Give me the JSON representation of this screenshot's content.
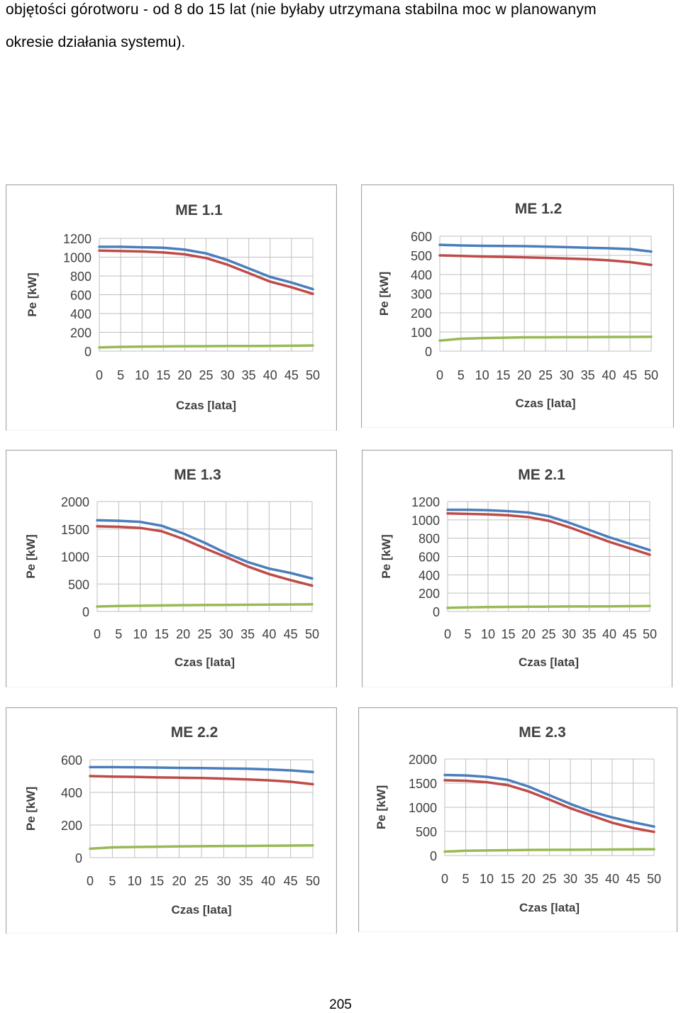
{
  "text": {
    "line1": "objętości górotworu - od 8 do 15 lat (nie byłaby utrzymana stabilna moc w planowanym",
    "line2": "okresie działania systemu)."
  },
  "page_number": "205",
  "colors": {
    "series1": "#4a7ebb",
    "series2": "#be4b48",
    "series3": "#98b954",
    "grid": "#bfbfbf",
    "border": "#a6a6a6"
  },
  "chart_data": [
    {
      "id": "me11",
      "type": "line",
      "title": "ME 1.1",
      "xlabel": "Czas [lata]",
      "ylabel": "Pe [kW]",
      "xlim": [
        0,
        50
      ],
      "ylim": [
        0,
        1200
      ],
      "xticks": [
        "0",
        "5",
        "10",
        "15",
        "20",
        "25",
        "30",
        "35",
        "40",
        "45",
        "50"
      ],
      "yticks": [
        "0",
        "200",
        "400",
        "600",
        "800",
        "1000",
        "1200"
      ],
      "x": [
        0,
        5,
        10,
        15,
        20,
        25,
        30,
        35,
        40,
        45,
        50
      ],
      "series": [
        {
          "values": [
            1110,
            1110,
            1105,
            1100,
            1080,
            1040,
            970,
            880,
            790,
            730,
            660
          ]
        },
        {
          "values": [
            1070,
            1065,
            1060,
            1050,
            1030,
            990,
            920,
            830,
            740,
            680,
            610
          ]
        },
        {
          "values": [
            40,
            45,
            48,
            50,
            52,
            53,
            55,
            55,
            56,
            58,
            60
          ]
        }
      ]
    },
    {
      "id": "me12",
      "type": "line",
      "title": "ME 1.2",
      "xlabel": "Czas [lata]",
      "ylabel": "Pe [kW]",
      "xlim": [
        0,
        50
      ],
      "ylim": [
        0,
        600
      ],
      "xticks": [
        "0",
        "5",
        "10",
        "15",
        "20",
        "25",
        "30",
        "35",
        "40",
        "45",
        "50"
      ],
      "yticks": [
        "0",
        "100",
        "200",
        "300",
        "400",
        "500",
        "600"
      ],
      "x": [
        0,
        5,
        10,
        15,
        20,
        25,
        30,
        35,
        40,
        45,
        50
      ],
      "series": [
        {
          "values": [
            555,
            552,
            550,
            549,
            548,
            546,
            543,
            540,
            537,
            533,
            520
          ]
        },
        {
          "values": [
            500,
            497,
            494,
            492,
            490,
            487,
            484,
            480,
            474,
            465,
            450
          ]
        },
        {
          "values": [
            55,
            65,
            68,
            70,
            72,
            72,
            73,
            73,
            74,
            74,
            75
          ]
        }
      ]
    },
    {
      "id": "me13",
      "type": "line",
      "title": "ME 1.3",
      "xlabel": "Czas [lata]",
      "ylabel": "Pe [kW]",
      "xlim": [
        0,
        50
      ],
      "ylim": [
        0,
        2000
      ],
      "xticks": [
        "0",
        "5",
        "10",
        "15",
        "20",
        "25",
        "30",
        "35",
        "40",
        "45",
        "50"
      ],
      "yticks": [
        "0",
        "500",
        "1000",
        "1500",
        "2000"
      ],
      "x": [
        0,
        5,
        10,
        15,
        20,
        25,
        30,
        35,
        40,
        45,
        50
      ],
      "series": [
        {
          "values": [
            1660,
            1650,
            1630,
            1560,
            1420,
            1250,
            1060,
            900,
            780,
            700,
            600
          ]
        },
        {
          "values": [
            1550,
            1540,
            1520,
            1460,
            1320,
            1150,
            990,
            820,
            680,
            570,
            470
          ]
        },
        {
          "values": [
            90,
            100,
            105,
            110,
            115,
            118,
            120,
            122,
            125,
            128,
            130
          ]
        }
      ]
    },
    {
      "id": "me21",
      "type": "line",
      "title": "ME 2.1",
      "xlabel": "Czas [lata]",
      "ylabel": "Pe [kW]",
      "xlim": [
        0,
        50
      ],
      "ylim": [
        0,
        1200
      ],
      "xticks": [
        "0",
        "5",
        "10",
        "15",
        "20",
        "25",
        "30",
        "35",
        "40",
        "45",
        "50"
      ],
      "yticks": [
        "0",
        "200",
        "400",
        "600",
        "800",
        "1000",
        "1200"
      ],
      "x": [
        0,
        5,
        10,
        15,
        20,
        25,
        30,
        35,
        40,
        45,
        50
      ],
      "series": [
        {
          "values": [
            1110,
            1110,
            1105,
            1095,
            1080,
            1040,
            970,
            890,
            810,
            740,
            670
          ]
        },
        {
          "values": [
            1070,
            1065,
            1060,
            1050,
            1030,
            990,
            920,
            840,
            760,
            690,
            620
          ]
        },
        {
          "values": [
            40,
            45,
            48,
            50,
            52,
            53,
            55,
            55,
            56,
            58,
            60
          ]
        }
      ]
    },
    {
      "id": "me22",
      "type": "line",
      "title": "ME 2.2",
      "xlabel": "Czas [lata]",
      "ylabel": "Pe [kW]",
      "xlim": [
        0,
        50
      ],
      "ylim": [
        0,
        600
      ],
      "xticks": [
        "0",
        "5",
        "10",
        "15",
        "20",
        "25",
        "30",
        "35",
        "40",
        "45",
        "50"
      ],
      "yticks": [
        "0",
        "200",
        "400",
        "600"
      ],
      "x": [
        0,
        5,
        10,
        15,
        20,
        25,
        30,
        35,
        40,
        45,
        50
      ],
      "series": [
        {
          "values": [
            555,
            555,
            554,
            552,
            550,
            549,
            547,
            545,
            541,
            535,
            525
          ]
        },
        {
          "values": [
            500,
            497,
            495,
            492,
            490,
            488,
            484,
            480,
            474,
            465,
            450
          ]
        },
        {
          "values": [
            55,
            63,
            65,
            67,
            69,
            70,
            71,
            72,
            73,
            74,
            75
          ]
        }
      ]
    },
    {
      "id": "me23",
      "type": "line",
      "title": "ME 2.3",
      "xlabel": "Czas [lata]",
      "ylabel": "Pe [kW]",
      "xlim": [
        0,
        50
      ],
      "ylim": [
        0,
        2000
      ],
      "xticks": [
        "0",
        "5",
        "10",
        "15",
        "20",
        "25",
        "30",
        "35",
        "40",
        "45",
        "50"
      ],
      "yticks": [
        "0",
        "500",
        "1000",
        "1500",
        "2000"
      ],
      "x": [
        0,
        5,
        10,
        15,
        20,
        25,
        30,
        35,
        40,
        45,
        50
      ],
      "series": [
        {
          "values": [
            1670,
            1660,
            1630,
            1570,
            1430,
            1250,
            1070,
            910,
            790,
            690,
            600
          ]
        },
        {
          "values": [
            1560,
            1550,
            1520,
            1460,
            1330,
            1160,
            980,
            830,
            680,
            570,
            490
          ]
        },
        {
          "values": [
            80,
            100,
            105,
            110,
            115,
            118,
            120,
            122,
            125,
            128,
            130
          ]
        }
      ]
    }
  ]
}
